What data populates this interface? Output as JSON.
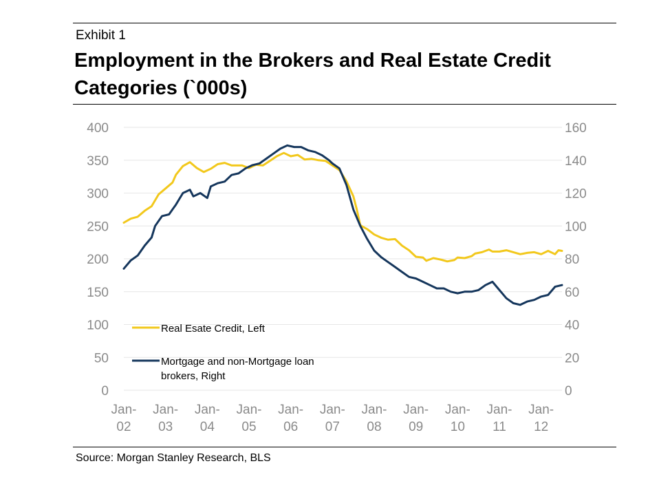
{
  "header": {
    "exhibit": "Exhibit 1",
    "title": "Employment in the Brokers and Real Estate Credit Categories (`000s)"
  },
  "footer": {
    "source": "Source: Morgan Stanley Research, BLS"
  },
  "colors": {
    "real_estate": "#f2c81c",
    "brokers": "#15365c",
    "grid": "#e6e6e6",
    "tick": "#8a8a8a"
  },
  "chart_data": {
    "type": "line",
    "title": "Employment in the Brokers and Real Estate Credit Categories (`000s)",
    "grid": true,
    "legend_position": "bottom-left",
    "x_unit": "months since Jan-02",
    "x_ticks": [
      {
        "label": [
          "Jan-",
          "02"
        ],
        "x": 0
      },
      {
        "label": [
          "Jan-",
          "03"
        ],
        "x": 12
      },
      {
        "label": [
          "Jan-",
          "04"
        ],
        "x": 24
      },
      {
        "label": [
          "Jan-",
          "05"
        ],
        "x": 36
      },
      {
        "label": [
          "Jan-",
          "06"
        ],
        "x": 48
      },
      {
        "label": [
          "Jan-",
          "07"
        ],
        "x": 60
      },
      {
        "label": [
          "Jan-",
          "08"
        ],
        "x": 72
      },
      {
        "label": [
          "Jan-",
          "09"
        ],
        "x": 84
      },
      {
        "label": [
          "Jan-",
          "10"
        ],
        "x": 96
      },
      {
        "label": [
          "Jan-",
          "11"
        ],
        "x": 108
      },
      {
        "label": [
          "Jan-",
          "12"
        ],
        "x": 120
      }
    ],
    "xlim": [
      0,
      126
    ],
    "y_left": {
      "ylim": [
        0,
        400
      ],
      "ticks": [
        0,
        50,
        100,
        150,
        200,
        250,
        300,
        350,
        400
      ]
    },
    "y_right": {
      "ylim": [
        0,
        160
      ],
      "ticks": [
        0,
        20,
        40,
        60,
        80,
        100,
        120,
        140,
        160
      ]
    },
    "series": [
      {
        "name": "Real Esate Credit, Left",
        "axis": "left",
        "color": "#f2c81c",
        "points": [
          [
            0,
            255
          ],
          [
            2,
            261
          ],
          [
            4,
            264
          ],
          [
            6,
            273
          ],
          [
            8,
            280
          ],
          [
            10,
            298
          ],
          [
            12,
            307
          ],
          [
            14,
            316
          ],
          [
            15,
            328
          ],
          [
            17,
            341
          ],
          [
            19,
            347
          ],
          [
            21,
            338
          ],
          [
            23,
            332
          ],
          [
            25,
            337
          ],
          [
            27,
            344
          ],
          [
            29,
            346
          ],
          [
            31,
            342
          ],
          [
            34,
            342
          ],
          [
            36,
            338
          ],
          [
            38,
            343
          ],
          [
            40,
            342
          ],
          [
            42,
            349
          ],
          [
            44,
            356
          ],
          [
            46,
            361
          ],
          [
            48,
            356
          ],
          [
            50,
            358
          ],
          [
            52,
            351
          ],
          [
            54,
            352
          ],
          [
            56,
            350
          ],
          [
            58,
            349
          ],
          [
            60,
            342
          ],
          [
            62,
            335
          ],
          [
            64,
            318
          ],
          [
            66,
            295
          ],
          [
            67,
            275
          ],
          [
            68,
            251
          ],
          [
            70,
            245
          ],
          [
            72,
            237
          ],
          [
            74,
            232
          ],
          [
            76,
            229
          ],
          [
            78,
            230
          ],
          [
            80,
            220
          ],
          [
            82,
            213
          ],
          [
            84,
            203
          ],
          [
            86,
            202
          ],
          [
            87,
            197
          ],
          [
            89,
            201
          ],
          [
            91,
            199
          ],
          [
            93,
            196
          ],
          [
            95,
            198
          ],
          [
            96,
            202
          ],
          [
            98,
            201
          ],
          [
            100,
            204
          ],
          [
            101,
            208
          ],
          [
            103,
            210
          ],
          [
            105,
            214
          ],
          [
            106,
            211
          ],
          [
            108,
            211
          ],
          [
            110,
            213
          ],
          [
            112,
            210
          ],
          [
            114,
            207
          ],
          [
            116,
            209
          ],
          [
            118,
            210
          ],
          [
            120,
            207
          ],
          [
            122,
            212
          ],
          [
            124,
            207
          ],
          [
            125,
            213
          ],
          [
            126,
            212
          ]
        ]
      },
      {
        "name": "Mortgage and non-Mortgage loan brokers, Right",
        "axis": "right",
        "color": "#15365c",
        "points": [
          [
            0,
            74
          ],
          [
            2,
            79
          ],
          [
            4,
            82
          ],
          [
            6,
            88
          ],
          [
            8,
            93
          ],
          [
            9,
            100
          ],
          [
            11,
            106
          ],
          [
            13,
            107
          ],
          [
            15,
            113
          ],
          [
            17,
            120
          ],
          [
            19,
            122
          ],
          [
            20,
            118
          ],
          [
            22,
            120
          ],
          [
            24,
            117
          ],
          [
            25,
            124
          ],
          [
            27,
            126
          ],
          [
            29,
            127
          ],
          [
            31,
            131
          ],
          [
            33,
            132
          ],
          [
            35,
            135
          ],
          [
            37,
            137
          ],
          [
            39,
            138
          ],
          [
            41,
            141
          ],
          [
            43,
            144
          ],
          [
            45,
            147
          ],
          [
            47,
            149
          ],
          [
            49,
            148
          ],
          [
            51,
            148
          ],
          [
            53,
            146
          ],
          [
            55,
            145
          ],
          [
            57,
            143
          ],
          [
            59,
            140
          ],
          [
            60,
            138
          ],
          [
            62,
            135
          ],
          [
            64,
            125
          ],
          [
            66,
            110
          ],
          [
            68,
            100
          ],
          [
            70,
            92
          ],
          [
            72,
            85
          ],
          [
            74,
            81
          ],
          [
            76,
            78
          ],
          [
            78,
            75
          ],
          [
            80,
            72
          ],
          [
            82,
            69
          ],
          [
            84,
            68
          ],
          [
            86,
            66
          ],
          [
            88,
            64
          ],
          [
            90,
            62
          ],
          [
            92,
            62
          ],
          [
            94,
            60
          ],
          [
            96,
            59
          ],
          [
            98,
            60
          ],
          [
            100,
            60
          ],
          [
            102,
            61
          ],
          [
            104,
            64
          ],
          [
            106,
            66
          ],
          [
            108,
            61
          ],
          [
            110,
            56
          ],
          [
            112,
            53
          ],
          [
            114,
            52
          ],
          [
            116,
            54
          ],
          [
            118,
            55
          ],
          [
            120,
            57
          ],
          [
            122,
            58
          ],
          [
            124,
            63
          ],
          [
            126,
            64
          ]
        ]
      }
    ]
  }
}
